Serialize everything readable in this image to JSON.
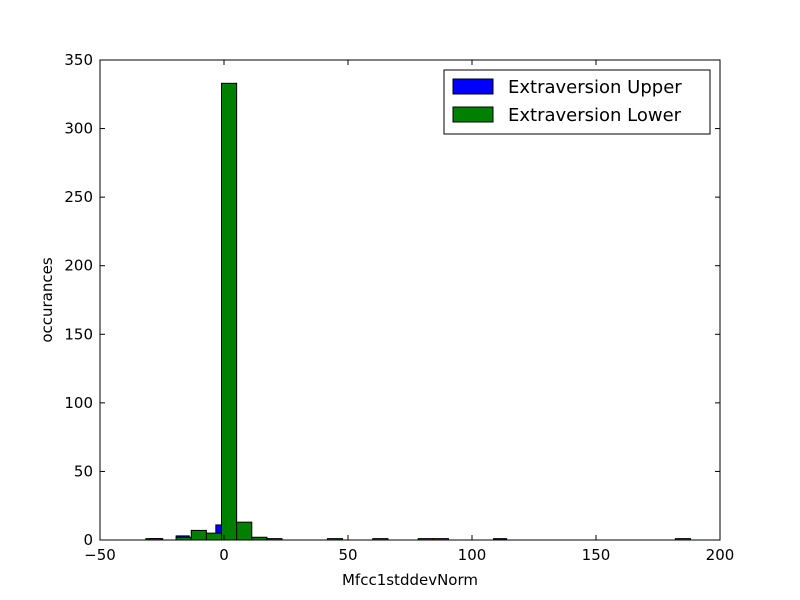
{
  "chart_data": {
    "type": "bar",
    "xlabel": "Mfcc1stddevNorm",
    "ylabel": "occurances",
    "xlim": [
      -50,
      200
    ],
    "ylim": [
      0,
      350
    ],
    "xticks": [
      -50,
      0,
      50,
      100,
      150,
      200
    ],
    "yticks": [
      0,
      50,
      100,
      150,
      200,
      250,
      300,
      350
    ],
    "grid": false,
    "legend_position": "top-right",
    "series": [
      {
        "name": "Extraversion Upper",
        "color": "#0000ff",
        "bin_edges": [
          -30,
          -24.7,
          -19.3,
          -14.0,
          -8.7,
          -3.3,
          2.0,
          7.3,
          12.7,
          18.0,
          23.3,
          28.7,
          34.0,
          39.3,
          44.7,
          50.0,
          55.3,
          60.7,
          66.0,
          71.3,
          76.7,
          82.0,
          87.3,
          92.7,
          98.0,
          103.3,
          108.7,
          114.0
        ],
        "values": [
          1,
          0,
          3,
          1,
          4,
          11,
          4,
          1,
          1,
          0,
          0,
          0,
          0,
          0,
          0,
          0,
          0,
          0,
          0,
          0,
          0,
          0,
          0,
          0,
          0,
          0,
          1
        ]
      },
      {
        "name": "Extraversion Lower",
        "color": "#008000",
        "bin_edges": [
          -31.5,
          -25.4,
          -19.3,
          -13.2,
          -7.1,
          -1.0,
          5.1,
          11.2,
          17.3,
          23.4,
          29.5,
          35.6,
          41.7,
          47.8,
          53.9,
          60.0,
          66.1,
          72.2,
          78.3,
          84.4,
          90.5,
          96.6,
          102.7,
          108.8,
          114.9,
          121.0,
          127.1,
          133.2,
          139.3,
          145.4,
          151.5,
          157.6,
          163.7,
          169.8,
          175.9,
          182.0,
          188.1
        ],
        "values": [
          1,
          0,
          2,
          7,
          5,
          333,
          13,
          2,
          1,
          0,
          0,
          0,
          1,
          0,
          0,
          1,
          0,
          0,
          1,
          1,
          0,
          0,
          0,
          0,
          0,
          0,
          0,
          0,
          0,
          0,
          0,
          0,
          0,
          0,
          0,
          1
        ]
      }
    ]
  }
}
